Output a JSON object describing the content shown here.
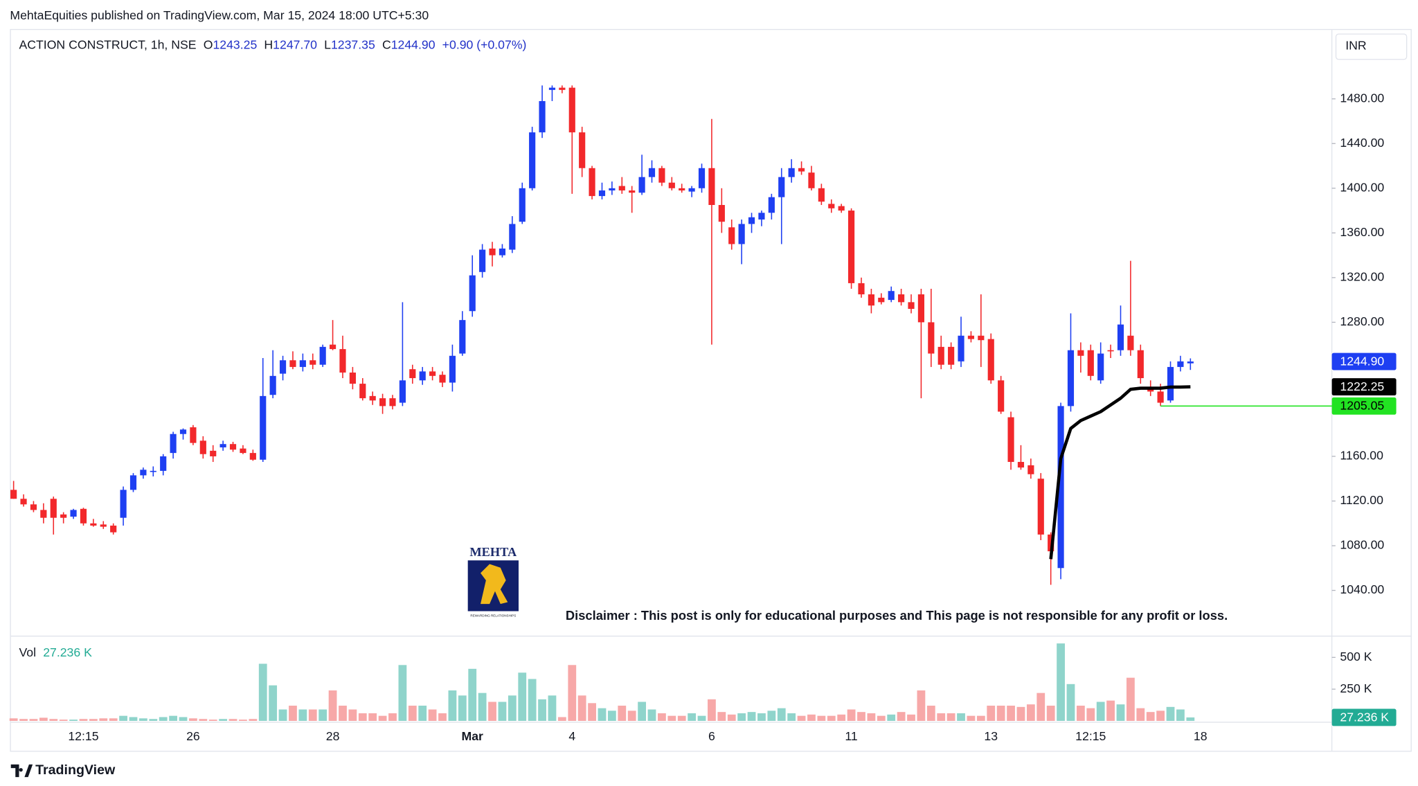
{
  "header": "MehtaEquities published on TradingView.com, Mar 15, 2024 18:00 UTC+5:30",
  "footer": "TradingView",
  "logo": {
    "name": "MEHTA",
    "tagline": "REWARDING RELATIONSHIPS"
  },
  "disclaimer": "Disclaimer : This post is only for educational purposes and This page is not responsible for any profit or loss.",
  "legend": {
    "symbol": "ACTION CONSTRUCT, 1h, NSE",
    "items": [
      {
        "label": "O",
        "value": "1243.25"
      },
      {
        "label": "H",
        "value": "1247.70"
      },
      {
        "label": "L",
        "value": "1237.35"
      },
      {
        "label": "C",
        "value": "1244.90"
      }
    ],
    "change": "+0.90 (+0.07%)"
  },
  "currency": "INR",
  "chart_data": {
    "type": "candlestick",
    "up_color": "#1e3ff2",
    "down_color": "#f2282b",
    "categories": [
      null,
      null,
      null,
      null,
      null,
      null,
      null,
      "12:15",
      null,
      null,
      null,
      null,
      null,
      null,
      null,
      null,
      null,
      null,
      "26",
      null,
      null,
      null,
      null,
      null,
      null,
      null,
      null,
      null,
      null,
      null,
      null,
      null,
      "28",
      null,
      null,
      null,
      null,
      null,
      null,
      null,
      null,
      null,
      null,
      null,
      null,
      null,
      "Mar",
      null,
      null,
      null,
      null,
      null,
      null,
      null,
      null,
      null,
      "4",
      null,
      null,
      null,
      null,
      null,
      null,
      null,
      null,
      null,
      null,
      null,
      null,
      null,
      "6",
      null,
      null,
      null,
      null,
      null,
      null,
      null,
      null,
      null,
      null,
      null,
      null,
      null,
      "11",
      null,
      null,
      null,
      null,
      null,
      null,
      null,
      null,
      null,
      null,
      null,
      null,
      null,
      "13",
      null,
      null,
      null,
      null,
      null,
      null,
      null,
      null,
      null,
      "12:15",
      null,
      null,
      null,
      null,
      null,
      null,
      null,
      null,
      null,
      null
    ],
    "x_axis_trailing_label": "18",
    "open": [
      1130,
      1122,
      1117,
      1112,
      1122,
      1108,
      1106,
      1113,
      1100,
      1099,
      1098,
      1105,
      1130,
      1143,
      1146,
      1147,
      1163,
      1180,
      1186,
      1174,
      1165,
      1168,
      1171,
      1167,
      1163,
      1157,
      1215,
      1234,
      1246,
      1240,
      1246,
      1242,
      1260,
      1256,
      1235,
      1225,
      1214,
      1212,
      1212,
      1208,
      1238,
      1228,
      1236,
      1233,
      1226,
      1252,
      1290,
      1325,
      1346,
      1340,
      1345,
      1370,
      1400,
      1450,
      1488,
      1490,
      1490,
      1450,
      1418,
      1393,
      1398,
      1402,
      1398,
      1396,
      1410,
      1418,
      1405,
      1400,
      1397,
      1400,
      1418,
      1385,
      1365,
      1350,
      1368,
      1372,
      1378,
      1392,
      1410,
      1418,
      1414,
      1400,
      1386,
      1384,
      1380,
      1315,
      1305,
      1302,
      1300,
      1305,
      1298,
      1305,
      1280,
      1258,
      1258,
      1245,
      1268,
      1268,
      1265,
      1228,
      1195,
      1155,
      1152,
      1140,
      1090,
      1060,
      1205,
      1255,
      1255,
      1228,
      1255,
      1255,
      1268,
      1255,
      1222,
      1218,
      1210,
      1240,
      1243.25
    ],
    "high": [
      1138,
      1126,
      1120,
      1118,
      1124,
      1110,
      1113,
      1114,
      1104,
      1102,
      1100,
      1133,
      1145,
      1150,
      1151,
      1162,
      1182,
      1185,
      1188,
      1178,
      1170,
      1174,
      1173,
      1170,
      1166,
      1248,
      1255,
      1250,
      1254,
      1252,
      1252,
      1260,
      1282,
      1268,
      1240,
      1230,
      1218,
      1216,
      1215,
      1298,
      1242,
      1240,
      1240,
      1236,
      1260,
      1290,
      1340,
      1350,
      1352,
      1350,
      1375,
      1405,
      1455,
      1492,
      1492,
      1492,
      1492,
      1455,
      1420,
      1405,
      1406,
      1410,
      1402,
      1430,
      1425,
      1420,
      1410,
      1404,
      1402,
      1422,
      1462,
      1400,
      1372,
      1372,
      1378,
      1380,
      1395,
      1418,
      1426,
      1424,
      1420,
      1404,
      1390,
      1386,
      1382,
      1320,
      1310,
      1306,
      1312,
      1310,
      1305,
      1310,
      1310,
      1268,
      1262,
      1285,
      1272,
      1305,
      1270,
      1232,
      1200,
      1170,
      1158,
      1145,
      1092,
      1208,
      1288,
      1262,
      1260,
      1262,
      1260,
      1295,
      1335,
      1260,
      1228,
      1225,
      1245,
      1250,
      1247.7
    ],
    "low": [
      1122,
      1115,
      1110,
      1100,
      1090,
      1100,
      1104,
      1098,
      1097,
      1095,
      1090,
      1098,
      1128,
      1140,
      1142,
      1143,
      1158,
      1175,
      1170,
      1158,
      1155,
      1165,
      1164,
      1162,
      1156,
      1155,
      1212,
      1228,
      1238,
      1236,
      1238,
      1240,
      1255,
      1230,
      1220,
      1210,
      1206,
      1198,
      1202,
      1205,
      1225,
      1224,
      1228,
      1222,
      1218,
      1250,
      1285,
      1320,
      1330,
      1338,
      1342,
      1368,
      1398,
      1445,
      1478,
      1485,
      1395,
      1410,
      1390,
      1390,
      1394,
      1395,
      1378,
      1394,
      1405,
      1402,
      1398,
      1396,
      1392,
      1396,
      1260,
      1360,
      1345,
      1332,
      1360,
      1366,
      1372,
      1350,
      1405,
      1412,
      1398,
      1385,
      1378,
      1378,
      1310,
      1302,
      1288,
      1296,
      1298,
      1295,
      1288,
      1212,
      1240,
      1238,
      1238,
      1240,
      1262,
      1240,
      1225,
      1198,
      1148,
      1148,
      1140,
      1085,
      1045,
      1050,
      1200,
      1235,
      1228,
      1225,
      1248,
      1250,
      1250,
      1225,
      1214,
      1205,
      1208,
      1236,
      1237.35
    ],
    "close": [
      1122,
      1117,
      1112,
      1105,
      1105,
      1105,
      1112,
      1100,
      1098,
      1097,
      1092,
      1130,
      1143,
      1148,
      1147,
      1160,
      1180,
      1184,
      1172,
      1162,
      1160,
      1171,
      1166,
      1163,
      1157,
      1214,
      1232,
      1246,
      1240,
      1246,
      1242,
      1258,
      1256,
      1235,
      1225,
      1212,
      1210,
      1205,
      1205,
      1228,
      1230,
      1236,
      1232,
      1226,
      1250,
      1282,
      1322,
      1345,
      1340,
      1346,
      1368,
      1400,
      1450,
      1478,
      1490,
      1488,
      1450,
      1418,
      1393,
      1398,
      1400,
      1398,
      1396,
      1410,
      1418,
      1405,
      1400,
      1398,
      1400,
      1418,
      1385,
      1370,
      1350,
      1368,
      1374,
      1378,
      1392,
      1410,
      1418,
      1415,
      1400,
      1388,
      1382,
      1380,
      1315,
      1305,
      1295,
      1298,
      1308,
      1298,
      1292,
      1280,
      1252,
      1242,
      1242,
      1268,
      1265,
      1264,
      1228,
      1200,
      1155,
      1150,
      1144,
      1090,
      1075,
      1205,
      1255,
      1250,
      1232,
      1252,
      1254,
      1278,
      1255,
      1230,
      1218,
      1208,
      1240,
      1245,
      1244.9
    ],
    "ylim": [
      1000.3,
      1541.7
    ],
    "yticks": [
      {
        "value": 1040,
        "label": "1040.00"
      },
      {
        "value": 1080,
        "label": "1080.00"
      },
      {
        "value": 1120,
        "label": "1120.00"
      },
      {
        "value": 1160,
        "label": "1160.00"
      },
      {
        "value": 1280,
        "label": "1280.00"
      },
      {
        "value": 1320,
        "label": "1320.00"
      },
      {
        "value": 1360,
        "label": "1360.00"
      },
      {
        "value": 1400,
        "label": "1400.00"
      },
      {
        "value": 1440,
        "label": "1440.00"
      },
      {
        "value": 1480,
        "label": "1480.00"
      }
    ],
    "overlay": {
      "color": "#000000",
      "values": [
        null,
        null,
        null,
        null,
        null,
        null,
        null,
        null,
        null,
        null,
        null,
        null,
        null,
        null,
        null,
        null,
        null,
        null,
        null,
        null,
        null,
        null,
        null,
        null,
        null,
        null,
        null,
        null,
        null,
        null,
        null,
        null,
        null,
        null,
        null,
        null,
        null,
        null,
        null,
        null,
        null,
        null,
        null,
        null,
        null,
        null,
        null,
        null,
        null,
        null,
        null,
        null,
        null,
        null,
        null,
        null,
        null,
        null,
        null,
        null,
        null,
        null,
        null,
        null,
        null,
        null,
        null,
        null,
        null,
        null,
        null,
        null,
        null,
        null,
        null,
        null,
        null,
        null,
        null,
        null,
        null,
        null,
        null,
        null,
        null,
        null,
        null,
        null,
        null,
        null,
        null,
        null,
        null,
        null,
        null,
        null,
        null,
        null,
        null,
        null,
        null,
        null,
        null,
        null,
        1068,
        1158,
        1185,
        1192,
        1196,
        1200,
        1206,
        1212,
        1220,
        1221,
        1221,
        1221,
        1222,
        1222,
        1222.25
      ]
    },
    "price_tags": [
      {
        "value": 1244.9,
        "label": "1244.90",
        "color": "#1e3ff2",
        "text_color": "#ffffff"
      },
      {
        "value": 1222.25,
        "label": "1222.25",
        "color": "#000000",
        "text_color": "#ffffff"
      },
      {
        "value": 1205.05,
        "label": "1205.05",
        "color": "#22e322",
        "text_color": "#000000",
        "line_from": 115
      }
    ],
    "volume": {
      "label": "Vol",
      "last_label": "27.236 K",
      "up_color": "#8fd4cb",
      "down_color": "#f7a8a8",
      "values": [
        20000,
        15000,
        15000,
        25000,
        15000,
        10000,
        10000,
        15000,
        15000,
        20000,
        20000,
        40000,
        30000,
        20000,
        15000,
        30000,
        40000,
        30000,
        20000,
        15000,
        10000,
        15000,
        15000,
        10000,
        15000,
        450000,
        280000,
        90000,
        120000,
        90000,
        90000,
        90000,
        240000,
        120000,
        90000,
        60000,
        60000,
        40000,
        60000,
        440000,
        120000,
        120000,
        90000,
        60000,
        240000,
        200000,
        410000,
        220000,
        150000,
        150000,
        200000,
        380000,
        330000,
        170000,
        200000,
        30000,
        440000,
        200000,
        140000,
        100000,
        80000,
        120000,
        80000,
        150000,
        90000,
        60000,
        40000,
        40000,
        60000,
        40000,
        170000,
        70000,
        50000,
        60000,
        70000,
        60000,
        80000,
        100000,
        60000,
        40000,
        50000,
        40000,
        40000,
        50000,
        90000,
        70000,
        60000,
        40000,
        50000,
        70000,
        50000,
        240000,
        120000,
        60000,
        60000,
        60000,
        40000,
        40000,
        120000,
        120000,
        120000,
        110000,
        130000,
        220000,
        120000,
        610000,
        290000,
        120000,
        100000,
        150000,
        160000,
        130000,
        340000,
        100000,
        70000,
        80000,
        110000,
        90000,
        27236
      ],
      "ylim": [
        0,
        657000
      ],
      "yticks": [
        {
          "value": 250000,
          "label": "250 K"
        },
        {
          "value": 500000,
          "label": "500 K"
        }
      ]
    }
  }
}
